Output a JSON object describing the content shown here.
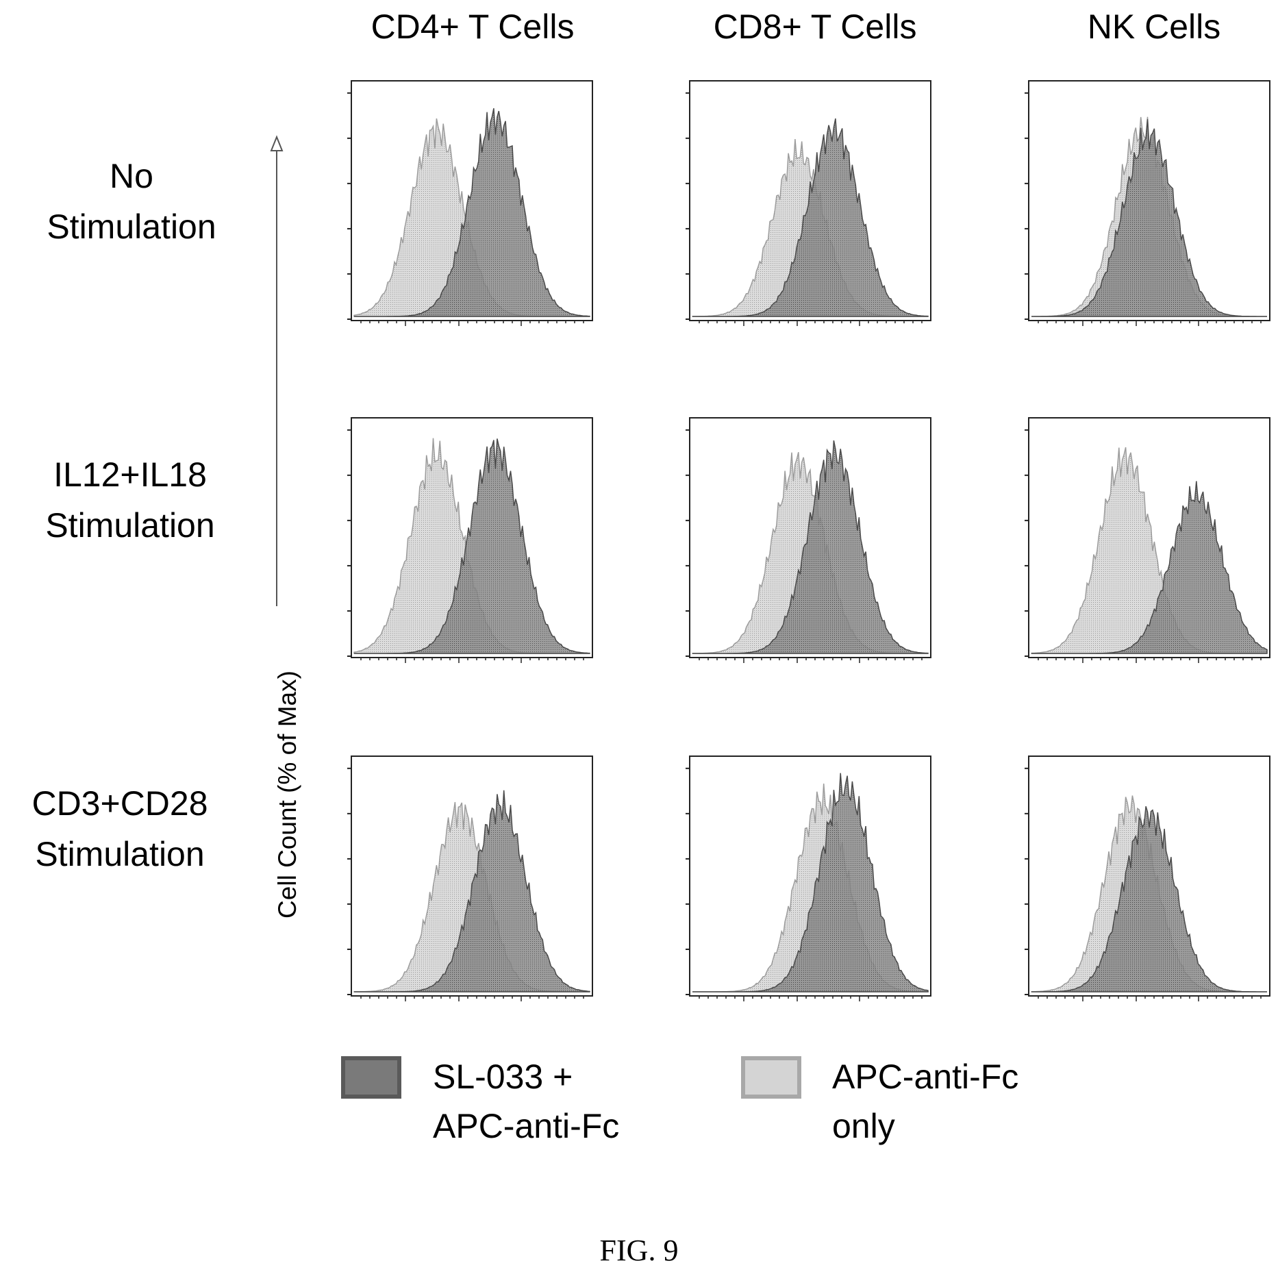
{
  "columns": [
    "CD4+ T Cells",
    "CD8+ T Cells",
    "NK Cells"
  ],
  "rows": [
    {
      "line1": "No",
      "line2": "Stimulation"
    },
    {
      "line1": "IL12+IL18",
      "line2": "Stimulation"
    },
    {
      "line1": "CD3+CD28",
      "line2": "Stimulation"
    }
  ],
  "ylabel": "Cell Count (% of Max)",
  "legend": [
    {
      "line1": "SL-033 +",
      "line2": "APC-anti-Fc",
      "color": "#7a7a7a"
    },
    {
      "line1": "APC-anti-Fc",
      "line2": "only",
      "color": "#cfcfcf"
    }
  ],
  "caption": "FIG. 9",
  "chart_data": {
    "type": "area",
    "xlabel": "",
    "ylabel": "Cell Count (% of Max)",
    "ylim": [
      0,
      100
    ],
    "panels": [
      {
        "row": "No Stimulation",
        "column": "CD4+ T Cells",
        "series": [
          {
            "legend": "SL-033 + APC-anti-Fc",
            "peak_x": 0.6,
            "peak_y": 85
          },
          {
            "legend": "APC-anti-Fc only",
            "peak_x": 0.35,
            "peak_y": 80
          }
        ]
      },
      {
        "row": "No Stimulation",
        "column": "CD8+ T Cells",
        "series": [
          {
            "legend": "SL-033 + APC-anti-Fc",
            "peak_x": 0.6,
            "peak_y": 80
          },
          {
            "legend": "APC-anti-Fc only",
            "peak_x": 0.45,
            "peak_y": 70
          }
        ]
      },
      {
        "row": "No Stimulation",
        "column": "NK Cells",
        "series": [
          {
            "legend": "SL-033 + APC-anti-Fc",
            "peak_x": 0.5,
            "peak_y": 78
          },
          {
            "legend": "APC-anti-Fc only",
            "peak_x": 0.47,
            "peak_y": 80
          }
        ]
      },
      {
        "row": "IL12+IL18 Stimulation",
        "column": "CD4+ T Cells",
        "series": [
          {
            "legend": "SL-033 + APC-anti-Fc",
            "peak_x": 0.6,
            "peak_y": 88
          },
          {
            "legend": "APC-anti-Fc only",
            "peak_x": 0.35,
            "peak_y": 85
          }
        ]
      },
      {
        "row": "IL12+IL18 Stimulation",
        "column": "CD8+ T Cells",
        "series": [
          {
            "legend": "SL-033 + APC-anti-Fc",
            "peak_x": 0.6,
            "peak_y": 86
          },
          {
            "legend": "APC-anti-Fc only",
            "peak_x": 0.45,
            "peak_y": 82
          }
        ]
      },
      {
        "row": "IL12+IL18 Stimulation",
        "column": "NK Cells",
        "series": [
          {
            "legend": "SL-033 + APC-anti-Fc",
            "peak_x": 0.7,
            "peak_y": 68
          },
          {
            "legend": "APC-anti-Fc only",
            "peak_x": 0.4,
            "peak_y": 84
          }
        ]
      },
      {
        "row": "CD3+CD28 Stimulation",
        "column": "CD4+ T Cells",
        "series": [
          {
            "legend": "SL-033 + APC-anti-Fc",
            "peak_x": 0.62,
            "peak_y": 80
          },
          {
            "legend": "APC-anti-Fc only",
            "peak_x": 0.45,
            "peak_y": 78
          }
        ]
      },
      {
        "row": "CD3+CD28 Stimulation",
        "column": "CD8+ T Cells",
        "series": [
          {
            "legend": "SL-033 + APC-anti-Fc",
            "peak_x": 0.65,
            "peak_y": 88
          },
          {
            "legend": "APC-anti-Fc only",
            "peak_x": 0.55,
            "peak_y": 82
          }
        ]
      },
      {
        "row": "CD3+CD28 Stimulation",
        "column": "NK Cells",
        "series": [
          {
            "legend": "SL-033 + APC-anti-Fc",
            "peak_x": 0.5,
            "peak_y": 76
          },
          {
            "legend": "APC-anti-Fc only",
            "peak_x": 0.42,
            "peak_y": 80
          }
        ]
      }
    ]
  }
}
